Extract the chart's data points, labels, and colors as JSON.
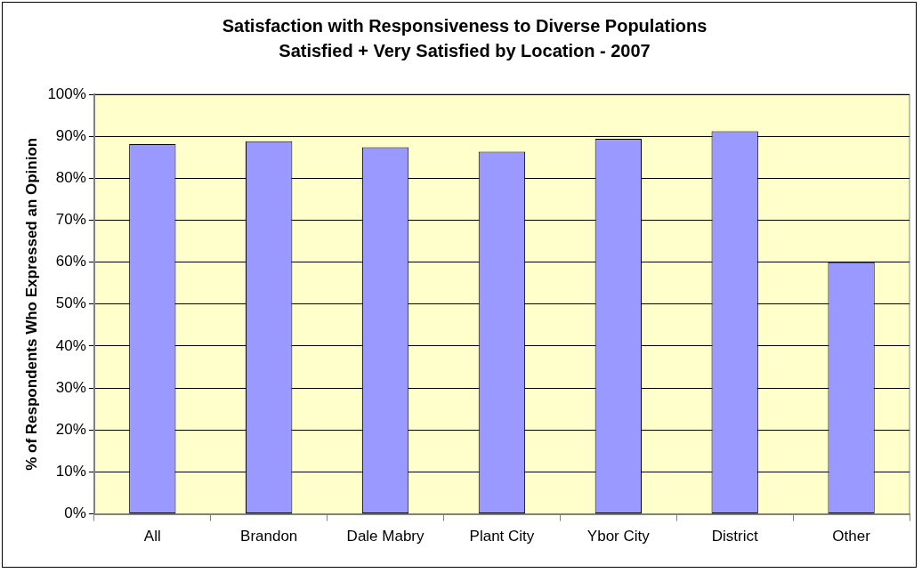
{
  "chart_data": {
    "type": "bar",
    "title": "Satisfaction with Responsiveness to Diverse Populations",
    "subtitle": "Satisfied + Very Satisfied by Location - 2007",
    "ylabel": "% of Respondents Who Expressed an Opinion",
    "categories": [
      "All",
      "Brandon",
      "Dale Mabry",
      "Plant City",
      "Ybor City",
      "District",
      "Other"
    ],
    "values": [
      88.1,
      88.8,
      87.4,
      86.3,
      89.4,
      91.2,
      60.0
    ],
    "color": "#9999ff",
    "ylim": [
      0,
      100
    ],
    "yticks": [
      {
        "value": 0,
        "label": "0%"
      },
      {
        "value": 10,
        "label": "10%"
      },
      {
        "value": 20,
        "label": "20%"
      },
      {
        "value": 30,
        "label": "30%"
      },
      {
        "value": 40,
        "label": "40%"
      },
      {
        "value": 50,
        "label": "50%"
      },
      {
        "value": 60,
        "label": "60%"
      },
      {
        "value": 70,
        "label": "70%"
      },
      {
        "value": 80,
        "label": "80%"
      },
      {
        "value": 90,
        "label": "90%"
      },
      {
        "value": 100,
        "label": "100%"
      }
    ],
    "grid": "y",
    "legend": false
  }
}
